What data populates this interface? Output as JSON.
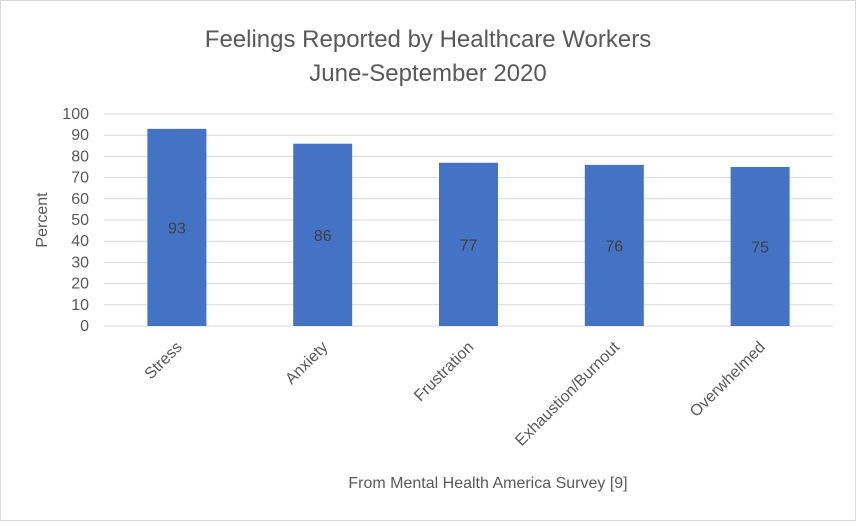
{
  "chart_data": {
    "type": "bar",
    "title_lines": [
      "Feelings Reported by Healthcare Workers",
      "June-September 2020"
    ],
    "ylabel": "Percent",
    "xlabel": "From Mental Health America Survey [9]",
    "categories": [
      "Stress",
      "Anxiety",
      "Frustration",
      "Exhaustion/Burnout",
      "Overwhelmed"
    ],
    "values": [
      93,
      86,
      77,
      76,
      75
    ],
    "ylim": [
      0,
      100
    ],
    "yticks": [
      0,
      10,
      20,
      30,
      40,
      50,
      60,
      70,
      80,
      90,
      100
    ],
    "grid": true,
    "legend": "none",
    "data_labels": true,
    "colors": {
      "bar": "#4472c4",
      "grid": "#d9d9d9",
      "text": "#595959",
      "data_label": "#404040"
    }
  }
}
